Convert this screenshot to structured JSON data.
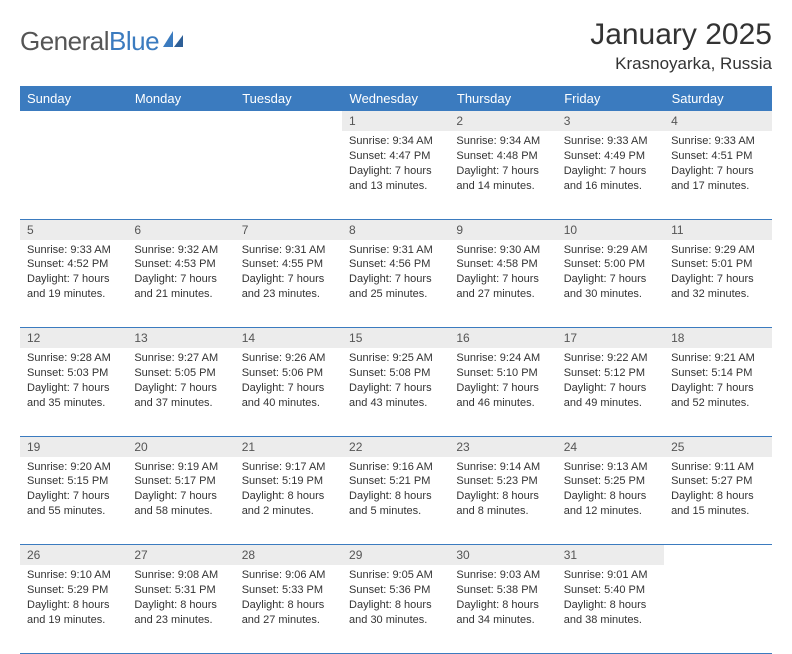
{
  "brand": {
    "part1": "General",
    "part2": "Blue"
  },
  "title": "January 2025",
  "location": "Krasnoyarka, Russia",
  "colors": {
    "header_bg": "#3b7bbf",
    "header_text": "#ffffff",
    "daynum_bg": "#ececec",
    "border": "#3b7bbf",
    "text": "#333333"
  },
  "dayNames": [
    "Sunday",
    "Monday",
    "Tuesday",
    "Wednesday",
    "Thursday",
    "Friday",
    "Saturday"
  ],
  "weeks": [
    [
      null,
      null,
      null,
      {
        "n": "1",
        "sr": "9:34 AM",
        "ss": "4:47 PM",
        "dl": "7 hours and 13 minutes."
      },
      {
        "n": "2",
        "sr": "9:34 AM",
        "ss": "4:48 PM",
        "dl": "7 hours and 14 minutes."
      },
      {
        "n": "3",
        "sr": "9:33 AM",
        "ss": "4:49 PM",
        "dl": "7 hours and 16 minutes."
      },
      {
        "n": "4",
        "sr": "9:33 AM",
        "ss": "4:51 PM",
        "dl": "7 hours and 17 minutes."
      }
    ],
    [
      {
        "n": "5",
        "sr": "9:33 AM",
        "ss": "4:52 PM",
        "dl": "7 hours and 19 minutes."
      },
      {
        "n": "6",
        "sr": "9:32 AM",
        "ss": "4:53 PM",
        "dl": "7 hours and 21 minutes."
      },
      {
        "n": "7",
        "sr": "9:31 AM",
        "ss": "4:55 PM",
        "dl": "7 hours and 23 minutes."
      },
      {
        "n": "8",
        "sr": "9:31 AM",
        "ss": "4:56 PM",
        "dl": "7 hours and 25 minutes."
      },
      {
        "n": "9",
        "sr": "9:30 AM",
        "ss": "4:58 PM",
        "dl": "7 hours and 27 minutes."
      },
      {
        "n": "10",
        "sr": "9:29 AM",
        "ss": "5:00 PM",
        "dl": "7 hours and 30 minutes."
      },
      {
        "n": "11",
        "sr": "9:29 AM",
        "ss": "5:01 PM",
        "dl": "7 hours and 32 minutes."
      }
    ],
    [
      {
        "n": "12",
        "sr": "9:28 AM",
        "ss": "5:03 PM",
        "dl": "7 hours and 35 minutes."
      },
      {
        "n": "13",
        "sr": "9:27 AM",
        "ss": "5:05 PM",
        "dl": "7 hours and 37 minutes."
      },
      {
        "n": "14",
        "sr": "9:26 AM",
        "ss": "5:06 PM",
        "dl": "7 hours and 40 minutes."
      },
      {
        "n": "15",
        "sr": "9:25 AM",
        "ss": "5:08 PM",
        "dl": "7 hours and 43 minutes."
      },
      {
        "n": "16",
        "sr": "9:24 AM",
        "ss": "5:10 PM",
        "dl": "7 hours and 46 minutes."
      },
      {
        "n": "17",
        "sr": "9:22 AM",
        "ss": "5:12 PM",
        "dl": "7 hours and 49 minutes."
      },
      {
        "n": "18",
        "sr": "9:21 AM",
        "ss": "5:14 PM",
        "dl": "7 hours and 52 minutes."
      }
    ],
    [
      {
        "n": "19",
        "sr": "9:20 AM",
        "ss": "5:15 PM",
        "dl": "7 hours and 55 minutes."
      },
      {
        "n": "20",
        "sr": "9:19 AM",
        "ss": "5:17 PM",
        "dl": "7 hours and 58 minutes."
      },
      {
        "n": "21",
        "sr": "9:17 AM",
        "ss": "5:19 PM",
        "dl": "8 hours and 2 minutes."
      },
      {
        "n": "22",
        "sr": "9:16 AM",
        "ss": "5:21 PM",
        "dl": "8 hours and 5 minutes."
      },
      {
        "n": "23",
        "sr": "9:14 AM",
        "ss": "5:23 PM",
        "dl": "8 hours and 8 minutes."
      },
      {
        "n": "24",
        "sr": "9:13 AM",
        "ss": "5:25 PM",
        "dl": "8 hours and 12 minutes."
      },
      {
        "n": "25",
        "sr": "9:11 AM",
        "ss": "5:27 PM",
        "dl": "8 hours and 15 minutes."
      }
    ],
    [
      {
        "n": "26",
        "sr": "9:10 AM",
        "ss": "5:29 PM",
        "dl": "8 hours and 19 minutes."
      },
      {
        "n": "27",
        "sr": "9:08 AM",
        "ss": "5:31 PM",
        "dl": "8 hours and 23 minutes."
      },
      {
        "n": "28",
        "sr": "9:06 AM",
        "ss": "5:33 PM",
        "dl": "8 hours and 27 minutes."
      },
      {
        "n": "29",
        "sr": "9:05 AM",
        "ss": "5:36 PM",
        "dl": "8 hours and 30 minutes."
      },
      {
        "n": "30",
        "sr": "9:03 AM",
        "ss": "5:38 PM",
        "dl": "8 hours and 34 minutes."
      },
      {
        "n": "31",
        "sr": "9:01 AM",
        "ss": "5:40 PM",
        "dl": "8 hours and 38 minutes."
      },
      null
    ]
  ],
  "labels": {
    "sunrise": "Sunrise: ",
    "sunset": "Sunset: ",
    "daylight": "Daylight: "
  }
}
